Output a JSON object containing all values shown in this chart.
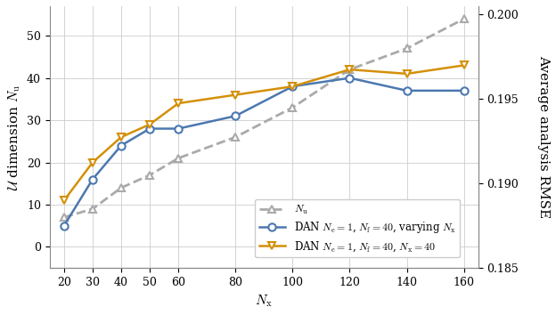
{
  "x": [
    20,
    30,
    40,
    50,
    60,
    80,
    100,
    120,
    140,
    160
  ],
  "blue_y": [
    5,
    16,
    24,
    28,
    28,
    31,
    38,
    40,
    37,
    37
  ],
  "orange_y": [
    11,
    20,
    26,
    29,
    34,
    36,
    38,
    42,
    41,
    43
  ],
  "gray_y": [
    7,
    9,
    14,
    17,
    21,
    26,
    33,
    42,
    47,
    54
  ],
  "blue_color": "#4C78B0",
  "orange_color": "#D4900A",
  "gray_color": "#AAAAAA",
  "left_ylim": [
    -5,
    57
  ],
  "left_yticks": [
    0,
    10,
    20,
    30,
    40,
    50
  ],
  "right_ylim": [
    0.185,
    0.2005
  ],
  "right_yticks": [
    0.185,
    0.19,
    0.195,
    0.2
  ],
  "xlim": [
    15,
    165
  ],
  "xticks": [
    20,
    30,
    40,
    50,
    60,
    80,
    100,
    120,
    140,
    160
  ],
  "xlabel": "$N_{\\mathrm{x}}$",
  "ylabel_left": "$\\mathcal{U}$ dimension $N_{\\mathrm{u}}$",
  "ylabel_right": "Average analysis RMSE",
  "legend_gray": "$N_{\\mathrm{u}}$",
  "legend_blue": "DAN $N_{\\mathrm{e}} = 1$, $N_{\\mathrm{f}} = 40$, varying $N_{\\mathrm{x}}$",
  "legend_orange": "DAN $N_{\\mathrm{e}} = 1$, $N_{\\mathrm{f}} = 40$, $N_{\\mathrm{x}} = 40$"
}
